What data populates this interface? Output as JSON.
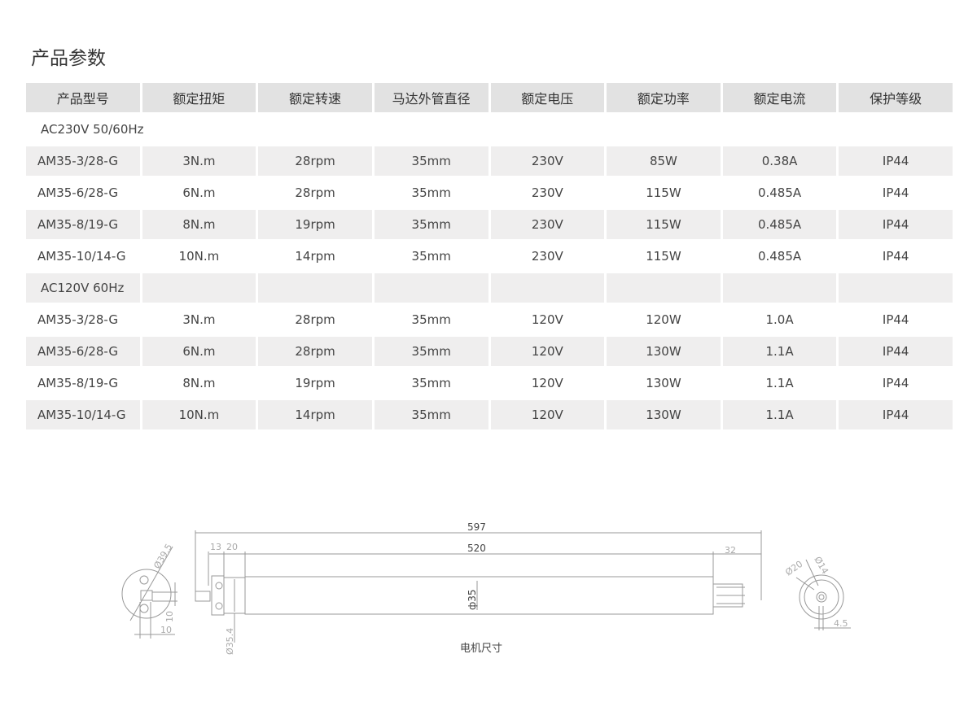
{
  "title": "产品参数",
  "table": {
    "headers": [
      "产品型号",
      "额定扭矩",
      "额定转速",
      "马达外管直径",
      "额定电压",
      "额定功率",
      "额定电流",
      "保护等级"
    ],
    "groups": [
      {
        "label": "AC230V 50/60Hz",
        "rows": [
          [
            "AM35-3/28-G",
            "3N.m",
            "28rpm",
            "35mm",
            "230V",
            "85W",
            "0.38A",
            "IP44"
          ],
          [
            "AM35-6/28-G",
            "6N.m",
            "28rpm",
            "35mm",
            "230V",
            "115W",
            "0.485A",
            "IP44"
          ],
          [
            "AM35-8/19-G",
            "8N.m",
            "19rpm",
            "35mm",
            "230V",
            "115W",
            "0.485A",
            "IP44"
          ],
          [
            "AM35-10/14-G",
            "10N.m",
            "14rpm",
            "35mm",
            "230V",
            "115W",
            "0.485A",
            "IP44"
          ]
        ]
      },
      {
        "label": "AC120V  60Hz",
        "rows": [
          [
            "AM35-3/28-G",
            "3N.m",
            "28rpm",
            "35mm",
            "120V",
            "120W",
            "1.0A",
            "IP44"
          ],
          [
            "AM35-6/28-G",
            "6N.m",
            "28rpm",
            "35mm",
            "120V",
            "130W",
            "1.1A",
            "IP44"
          ],
          [
            "AM35-8/19-G",
            "8N.m",
            "19rpm",
            "35mm",
            "120V",
            "130W",
            "1.1A",
            "IP44"
          ],
          [
            "AM35-10/14-G",
            "10N.m",
            "14rpm",
            "35mm",
            "120V",
            "130W",
            "1.1A",
            "IP44"
          ]
        ]
      }
    ]
  },
  "drawing": {
    "caption": "电机尺寸",
    "dims": {
      "total": "597",
      "tube": "520",
      "d13": "13",
      "d20": "20",
      "right": "32",
      "tube_dia": "ф35",
      "head_dia": "Ø35.4",
      "end_dia": "Ø39.5",
      "sq1": "10",
      "sq2": "10",
      "cap_d20": "Ø20",
      "cap_d14": "Ø14",
      "shaft": "4.5"
    }
  }
}
